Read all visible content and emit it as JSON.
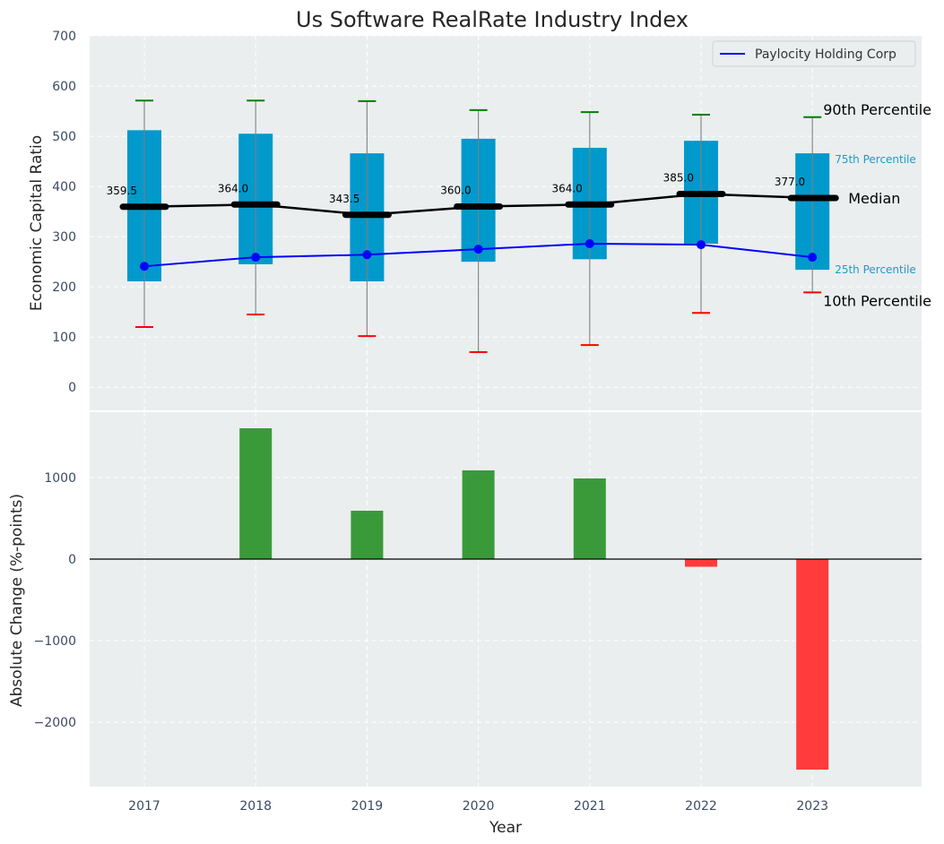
{
  "chart_data": [
    {
      "type": "box",
      "title": "Us Software RealRate Industry Index",
      "xlabel": "",
      "ylabel": "Economic Capital Ratio",
      "ylim": [
        -46,
        700
      ],
      "yticks": [
        0,
        100,
        200,
        300,
        400,
        500,
        600,
        700
      ],
      "grid": true,
      "categories": [
        "2017",
        "2018",
        "2019",
        "2020",
        "2021",
        "2022",
        "2023"
      ],
      "p10": [
        120,
        145,
        102,
        70,
        84,
        148,
        189
      ],
      "p25": [
        211,
        245,
        211,
        250,
        255,
        286,
        234
      ],
      "median": [
        359.5,
        364.0,
        343.5,
        360.0,
        364.0,
        385.0,
        377.0
      ],
      "median_labels": [
        "359.5",
        "364.0",
        "343.5",
        "360.0",
        "364.0",
        "385.0",
        "377.0"
      ],
      "p75": [
        512,
        505,
        466,
        495,
        477,
        491,
        466
      ],
      "p90": [
        571,
        571,
        570,
        552,
        548,
        543,
        538
      ],
      "company_series": {
        "name": "Paylocity Holding Corp",
        "values": [
          241,
          259,
          264,
          275,
          286,
          284,
          259
        ],
        "color": "#0000ff"
      },
      "legend": {
        "position": "top-right",
        "entries": [
          "Paylocity Holding Corp"
        ]
      },
      "annotations": {
        "p90": "90th Percentile",
        "p75": "75th Percentile",
        "median": "Median",
        "p25": "25th Percentile",
        "p10": "10th Percentile"
      },
      "colors": {
        "box": "#0099cc",
        "median": "#000000",
        "p90_cap": "#008000",
        "p10_cap": "#ff0000",
        "whisker": "#808080",
        "pct_small_text": "#1a9bc9",
        "background": "#eaeeef"
      }
    },
    {
      "type": "bar",
      "title": "",
      "xlabel": "Year",
      "ylabel": "Absolute Change (%-points)",
      "ylim": [
        -2791,
        1802
      ],
      "yticks": [
        -2000,
        -1000,
        0,
        1000
      ],
      "ytick_labels": [
        "−2000",
        "−1000",
        "0",
        "1000"
      ],
      "grid": true,
      "categories": [
        "2017",
        "2018",
        "2019",
        "2020",
        "2021",
        "2022",
        "2023"
      ],
      "values": [
        0,
        1604,
        593,
        1088,
        989,
        -94,
        -2582
      ],
      "colors": {
        "positive": "#3a9a3a",
        "negative": "#ff3b3b",
        "zero_line": "#000000"
      }
    }
  ]
}
